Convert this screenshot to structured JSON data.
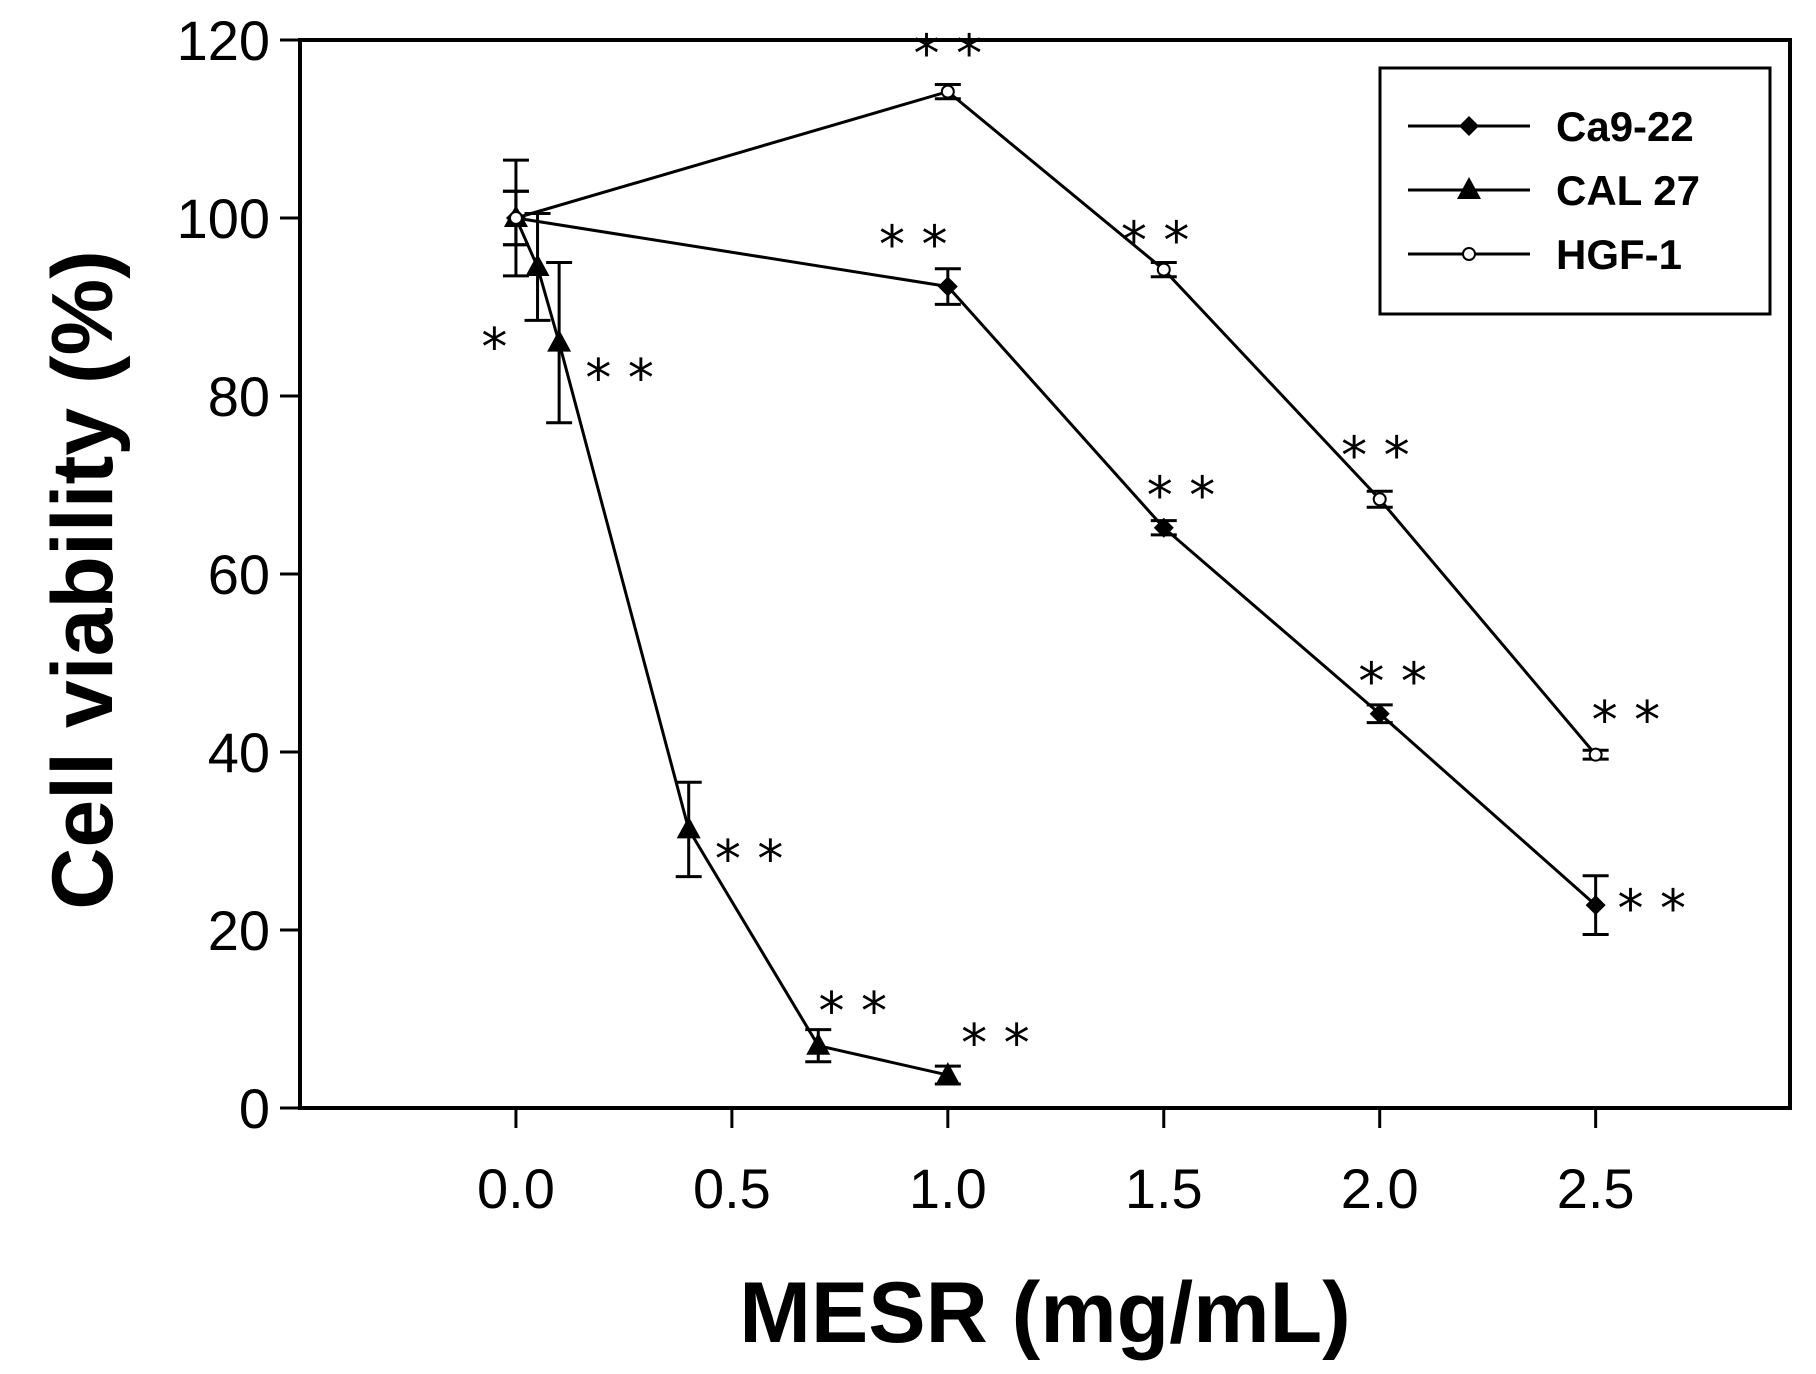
{
  "chart_data": {
    "type": "line",
    "title": "",
    "xlabel": "MESR (mg/mL)",
    "ylabel": "Cell viability (%)",
    "xlim": [
      -0.5,
      2.95
    ],
    "ylim": [
      0,
      120
    ],
    "xticks": [
      0.0,
      0.5,
      1.0,
      1.5,
      2.0,
      2.5
    ],
    "xtick_labels": [
      "0.0",
      "0.5",
      "1.0",
      "1.5",
      "2.0",
      "2.5"
    ],
    "yticks": [
      0,
      20,
      40,
      60,
      80,
      100,
      120
    ],
    "ytick_labels": [
      "0",
      "20",
      "40",
      "60",
      "80",
      "100",
      "120"
    ],
    "grid": false,
    "legend_position": "top-right",
    "series": [
      {
        "name": "Ca9-22",
        "marker": "diamond",
        "x": [
          0.0,
          1.0,
          1.5,
          2.0,
          2.5
        ],
        "y": [
          100,
          92.3,
          65.2,
          44.3,
          22.8
        ],
        "err": [
          6.5,
          2.0,
          0.8,
          1.0,
          3.3
        ]
      },
      {
        "name": "CAL 27",
        "marker": "triangle",
        "x": [
          0.0,
          0.05,
          0.1,
          0.4,
          0.7,
          1.0
        ],
        "y": [
          100,
          94.5,
          86.0,
          31.3,
          7.0,
          3.7
        ],
        "err": [
          3.0,
          6.0,
          9.0,
          5.3,
          1.8,
          1.0
        ]
      },
      {
        "name": "HGF-1",
        "marker": "open-circle",
        "x": [
          0.0,
          1.0,
          1.5,
          2.0,
          2.5
        ],
        "y": [
          100,
          114.2,
          94.2,
          68.4,
          39.7
        ],
        "err": [
          3.0,
          0.8,
          0.8,
          0.9,
          0.5
        ]
      }
    ],
    "annotations": [
      {
        "text": "* *",
        "x": 1.0,
        "y": 118.5,
        "offset": "center"
      },
      {
        "text": "* *",
        "x": 0.92,
        "y": 97.0,
        "offset": "center"
      },
      {
        "text": "* *",
        "x": 1.48,
        "y": 97.5,
        "offset": "center"
      },
      {
        "text": "*",
        "x": -0.05,
        "y": 85.5,
        "offset": "center"
      },
      {
        "text": "* *",
        "x": 0.24,
        "y": 82.0,
        "offset": "center"
      },
      {
        "text": "* *",
        "x": 1.54,
        "y": 68.8,
        "offset": "center"
      },
      {
        "text": "* *",
        "x": 1.99,
        "y": 73.3,
        "offset": "center"
      },
      {
        "text": "* *",
        "x": 2.03,
        "y": 47.9,
        "offset": "center"
      },
      {
        "text": "* *",
        "x": 2.57,
        "y": 43.6,
        "offset": "center"
      },
      {
        "text": "* *",
        "x": 0.54,
        "y": 28.0,
        "offset": "center"
      },
      {
        "text": "* *",
        "x": 2.63,
        "y": 22.4,
        "offset": "center"
      },
      {
        "text": "* *",
        "x": 0.78,
        "y": 10.9,
        "offset": "center"
      },
      {
        "text": "* *",
        "x": 1.11,
        "y": 7.3,
        "offset": "center"
      }
    ]
  }
}
